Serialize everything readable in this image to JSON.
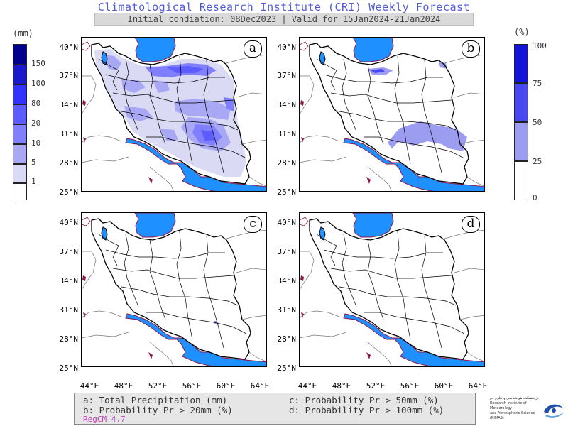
{
  "header": {
    "title": "Climatological Research Institute (CRI) Weekly Forecast",
    "subtitle": "Initial condiation: 08Dec2023 | Valid for 15Jan2024-21Jan2024"
  },
  "left_colorbar": {
    "unit": "(mm)",
    "labels": [
      "150",
      "100",
      "80",
      "20",
      "10",
      "5",
      "1"
    ],
    "colors": [
      "#00008f",
      "#1a1acc",
      "#3333ff",
      "#5c5cff",
      "#8080ff",
      "#a8a8f5",
      "#dadaf5",
      "#ffffff"
    ]
  },
  "right_colorbar": {
    "unit": "(%)",
    "labels": [
      "100",
      "75",
      "50",
      "25",
      "0"
    ],
    "colors": [
      "#1414d8",
      "#4848f0",
      "#9c9cf0",
      "#ffffff"
    ]
  },
  "axes": {
    "lat_ticks": [
      "40°N",
      "37°N",
      "34°N",
      "31°N",
      "28°N",
      "25°N"
    ],
    "lon_ticks": [
      "44°E",
      "48°E",
      "52°E",
      "56°E",
      "60°E",
      "64°E"
    ]
  },
  "panels": [
    {
      "letter": "a"
    },
    {
      "letter": "b"
    },
    {
      "letter": "c"
    },
    {
      "letter": "d"
    }
  ],
  "legend": {
    "a": "a: Total Precipitation (mm)",
    "b": "b: Probability Pr > 20mm (%)",
    "c": "c: Probability Pr > 50mm (%)",
    "d": "d: Probability Pr > 100mm (%)",
    "model": "RegCM 4.7"
  },
  "logo": {
    "line1": "پژوهشکده هواشناسی و علوم جو",
    "line2": "Research Institute of Meteorology",
    "line3": "and Atmospheric Science (RIMAS)"
  },
  "colors": {
    "sea": "#1e90ff",
    "coast": "#8b1a4a",
    "title": "#4f5bd5"
  }
}
